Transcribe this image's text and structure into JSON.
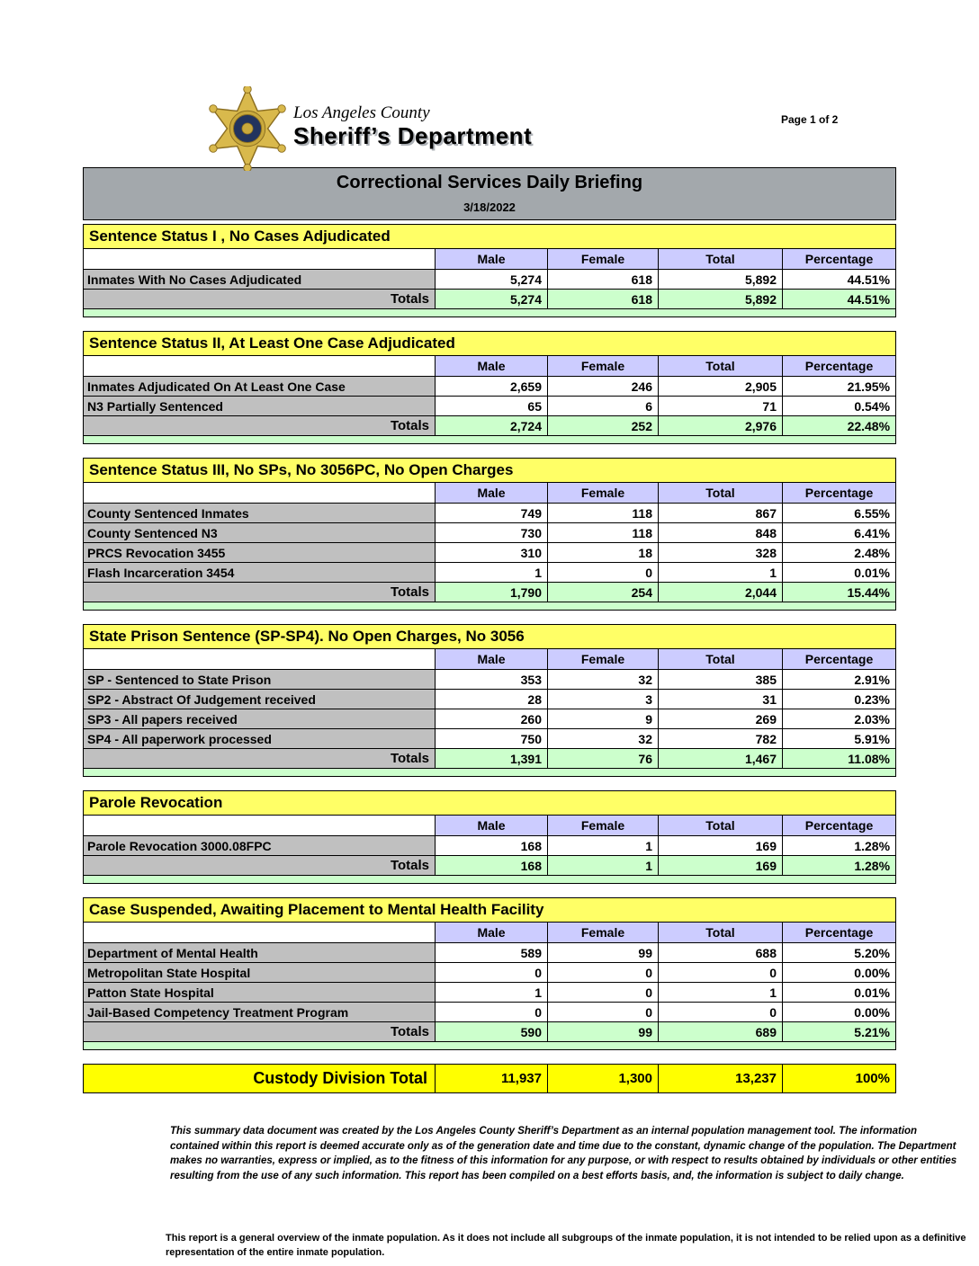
{
  "page_label": "Page 1 of 2",
  "agency": {
    "line1": "Los Angeles County",
    "line2": "Sheriff’s Department"
  },
  "title": {
    "main": "Correctional Services Daily Briefing",
    "date": "3/18/2022"
  },
  "columns": [
    "Male",
    "Female",
    "Total",
    "Percentage"
  ],
  "totals_label": "Totals",
  "sections": [
    {
      "title": "Sentence Status I , No Cases Adjudicated",
      "rows": [
        {
          "label": "Inmates With No Cases Adjudicated",
          "values": [
            "5,274",
            "618",
            "5,892",
            "44.51%"
          ]
        }
      ],
      "totals": [
        "5,274",
        "618",
        "5,892",
        "44.51%"
      ]
    },
    {
      "title": "Sentence Status II, At Least One Case Adjudicated",
      "rows": [
        {
          "label": "Inmates Adjudicated On At Least One Case",
          "values": [
            "2,659",
            "246",
            "2,905",
            "21.95%"
          ]
        },
        {
          "label": "N3 Partially Sentenced",
          "values": [
            "65",
            "6",
            "71",
            "0.54%"
          ]
        }
      ],
      "totals": [
        "2,724",
        "252",
        "2,976",
        "22.48%"
      ]
    },
    {
      "title": "Sentence Status III, No SPs, No 3056PC, No Open Charges",
      "rows": [
        {
          "label": "County Sentenced Inmates",
          "values": [
            "749",
            "118",
            "867",
            "6.55%"
          ]
        },
        {
          "label": "County Sentenced N3",
          "values": [
            "730",
            "118",
            "848",
            "6.41%"
          ]
        },
        {
          "label": "PRCS Revocation 3455",
          "values": [
            "310",
            "18",
            "328",
            "2.48%"
          ]
        },
        {
          "label": "Flash Incarceration 3454",
          "values": [
            "1",
            "0",
            "1",
            "0.01%"
          ]
        }
      ],
      "totals": [
        "1,790",
        "254",
        "2,044",
        "15.44%"
      ]
    },
    {
      "title": "State Prison Sentence (SP-SP4). No Open Charges, No 3056",
      "rows": [
        {
          "label": "SP - Sentenced to State Prison",
          "values": [
            "353",
            "32",
            "385",
            "2.91%"
          ]
        },
        {
          "label": "SP2 - Abstract Of Judgement received",
          "values": [
            "28",
            "3",
            "31",
            "0.23%"
          ]
        },
        {
          "label": "SP3 - All papers received",
          "values": [
            "260",
            "9",
            "269",
            "2.03%"
          ]
        },
        {
          "label": "SP4 - All paperwork processed",
          "values": [
            "750",
            "32",
            "782",
            "5.91%"
          ]
        }
      ],
      "totals": [
        "1,391",
        "76",
        "1,467",
        "11.08%"
      ]
    },
    {
      "title": "Parole Revocation",
      "rows": [
        {
          "label": "Parole Revocation 3000.08FPC",
          "values": [
            "168",
            "1",
            "169",
            "1.28%"
          ]
        }
      ],
      "totals": [
        "168",
        "1",
        "169",
        "1.28%"
      ]
    },
    {
      "title": "Case Suspended, Awaiting Placement to Mental Health Facility",
      "rows": [
        {
          "label": "Department of Mental Health",
          "values": [
            "589",
            "99",
            "688",
            "5.20%"
          ]
        },
        {
          "label": "Metropolitan State Hospital",
          "values": [
            "0",
            "0",
            "0",
            "0.00%"
          ]
        },
        {
          "label": "Patton State Hospital",
          "values": [
            "1",
            "0",
            "1",
            "0.01%"
          ]
        },
        {
          "label": "Jail-Based Competency Treatment Program",
          "values": [
            "0",
            "0",
            "0",
            "0.00%"
          ]
        }
      ],
      "totals": [
        "590",
        "99",
        "689",
        "5.21%"
      ]
    }
  ],
  "grand_total": {
    "label": "Custody Division Total",
    "values": [
      "11,937",
      "1,300",
      "13,237",
      "100%"
    ]
  },
  "disclaimer": "This summary data document was created by the Los Angeles County Sheriff’s Department as an internal population management tool.  The information contained within this report is deemed accurate only as of the generation date and time due to the constant, dynamic change of the population.  The Department makes no warranties, express or implied, as to the fitness of this information for any purpose, or with respect to results obtained by individuals or other entities resulting from the use of any such information.  This report has been compiled on a best efforts basis, and, the information is subject to daily change.",
  "footnote": "This report is a general overview of the inmate population.  As it does not include all subgroups of the inmate population, it is not intended to be relied upon as a definitive representation of the entire inmate population."
}
